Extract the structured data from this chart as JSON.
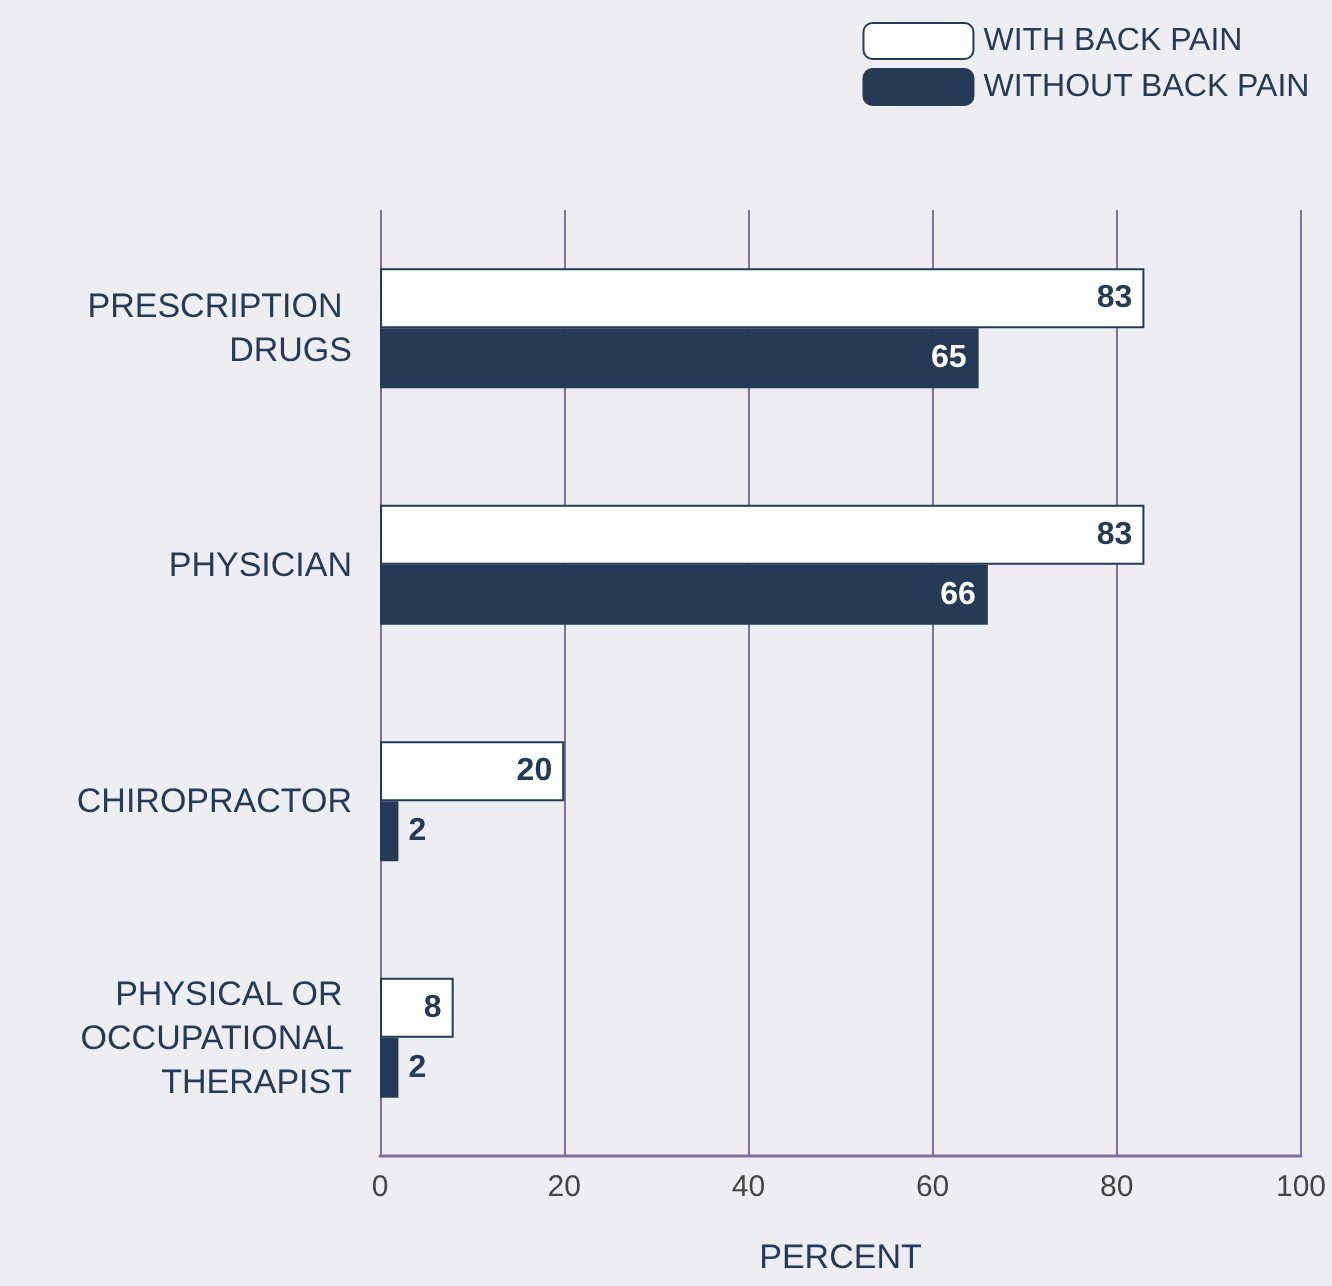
{
  "chart_data": {
    "type": "bar",
    "orientation": "horizontal",
    "xlabel": "PERCENT",
    "categories": [
      "PRESCRIPTION DRUGS",
      "PHYSICIAN",
      "CHIROPRACTOR",
      "PHYSICAL OR OCCUPATIONAL THERAPIST"
    ],
    "series": [
      {
        "name": "WITH BACK PAIN",
        "color": "#ffffff",
        "values": [
          83,
          83,
          20,
          8
        ]
      },
      {
        "name": "WITHOUT BACK PAIN",
        "color": "#243a55",
        "values": [
          65,
          66,
          2,
          2
        ]
      }
    ],
    "xlim": [
      0,
      100
    ],
    "xticks": [
      0,
      20,
      40,
      60,
      80,
      100
    ],
    "grid": "x",
    "legend": "top right",
    "data_labels": true
  }
}
